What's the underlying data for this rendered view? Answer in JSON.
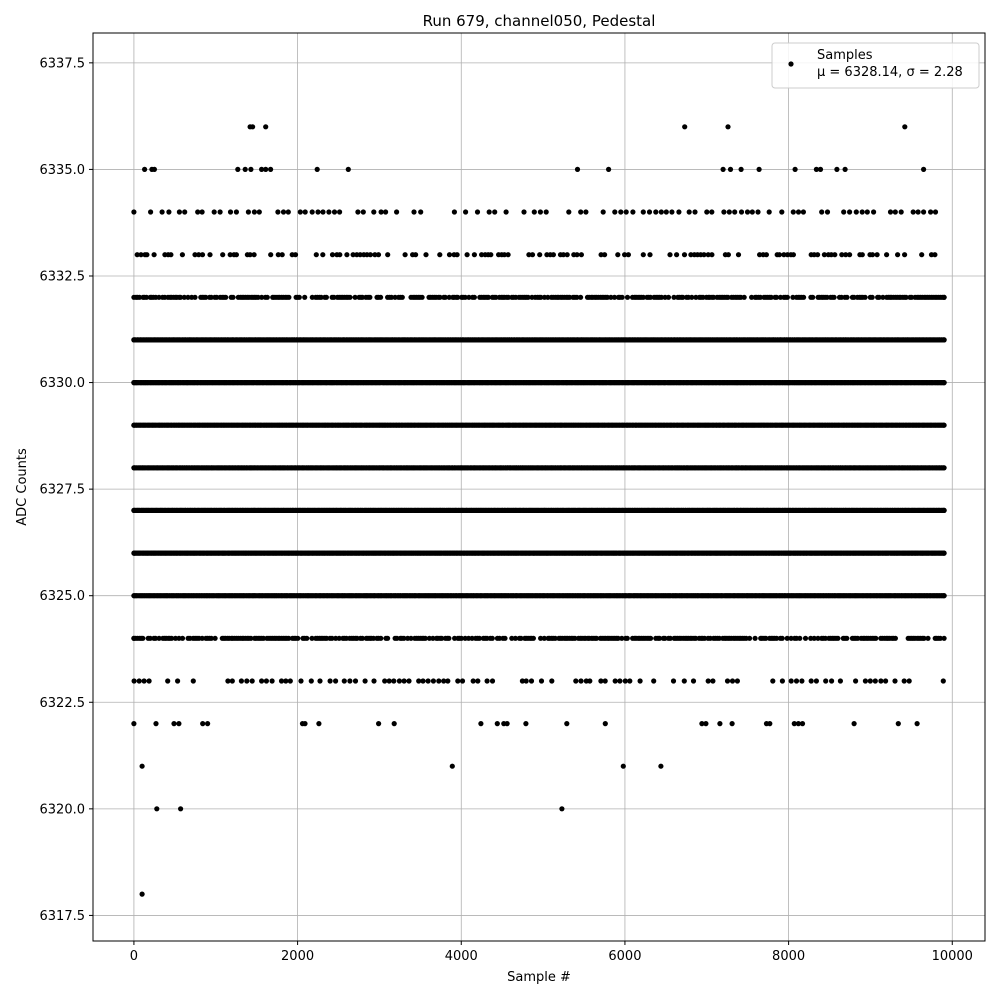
{
  "chart_data": {
    "type": "scatter",
    "title": "Run 679, channel050, Pedestal",
    "xlabel": "Sample #",
    "ylabel": "ADC Counts",
    "xlim": [
      -500,
      10400
    ],
    "ylim": [
      6316.9,
      6338.2
    ],
    "xticks": [
      0,
      2000,
      4000,
      6000,
      8000,
      10000
    ],
    "xtick_labels": [
      "0",
      "2000",
      "4000",
      "6000",
      "8000",
      "10000"
    ],
    "yticks": [
      6317.5,
      6320.0,
      6322.5,
      6325.0,
      6327.5,
      6330.0,
      6332.5,
      6335.0,
      6337.5
    ],
    "ytick_labels": [
      "6317.5",
      "6320.0",
      "6322.5",
      "6325.0",
      "6327.5",
      "6330.0",
      "6332.5",
      "6335.0",
      "6337.5"
    ],
    "grid": true,
    "legend_position": "top-right",
    "marker_color": "#000000",
    "series": [
      {
        "name": "Samples",
        "label_line2": "μ = 6328.14, σ = 2.28",
        "n_samples": 10000,
        "mean": 6328.14,
        "std": 2.28,
        "dense_levels": [
          6324,
          6325,
          6326,
          6327,
          6328,
          6329,
          6330,
          6331,
          6332
        ],
        "sparse_levels": [
          6323,
          6333,
          6334
        ],
        "points": [
          [
            0,
            6322
          ],
          [
            100,
            6321
          ],
          [
            100,
            6318
          ],
          [
            280,
            6320
          ],
          [
            570,
            6320
          ],
          [
            5230,
            6320
          ],
          [
            3890,
            6321
          ],
          [
            5980,
            6321
          ],
          [
            6440,
            6321
          ],
          [
            270,
            6322
          ],
          [
            490,
            6322
          ],
          [
            550,
            6322
          ],
          [
            840,
            6322
          ],
          [
            900,
            6322
          ],
          [
            2060,
            6322
          ],
          [
            2090,
            6322
          ],
          [
            2260,
            6322
          ],
          [
            2990,
            6322
          ],
          [
            3180,
            6322
          ],
          [
            4240,
            6322
          ],
          [
            4440,
            6322
          ],
          [
            4520,
            6322
          ],
          [
            4560,
            6322
          ],
          [
            4790,
            6322
          ],
          [
            5290,
            6322
          ],
          [
            5760,
            6322
          ],
          [
            6940,
            6322
          ],
          [
            6990,
            6322
          ],
          [
            7160,
            6322
          ],
          [
            7310,
            6322
          ],
          [
            7730,
            6322
          ],
          [
            7770,
            6322
          ],
          [
            8070,
            6322
          ],
          [
            8120,
            6322
          ],
          [
            8170,
            6322
          ],
          [
            8800,
            6322
          ],
          [
            9340,
            6322
          ],
          [
            9570,
            6322
          ],
          [
            1270,
            6335
          ],
          [
            1360,
            6335
          ],
          [
            1430,
            6335
          ],
          [
            1560,
            6335
          ],
          [
            1610,
            6335
          ],
          [
            1670,
            6335
          ],
          [
            2240,
            6335
          ],
          [
            2620,
            6335
          ],
          [
            5420,
            6335
          ],
          [
            5800,
            6335
          ],
          [
            7200,
            6335
          ],
          [
            7290,
            6335
          ],
          [
            7420,
            6335
          ],
          [
            7640,
            6335
          ],
          [
            8080,
            6335
          ],
          [
            8340,
            6335
          ],
          [
            8390,
            6335
          ],
          [
            8590,
            6335
          ],
          [
            8690,
            6335
          ],
          [
            9650,
            6335
          ],
          [
            130,
            6335
          ],
          [
            220,
            6335
          ],
          [
            250,
            6335
          ],
          [
            1420,
            6336
          ],
          [
            1450,
            6336
          ],
          [
            1610,
            6336
          ],
          [
            6730,
            6336
          ],
          [
            7260,
            6336
          ],
          [
            9420,
            6336
          ]
        ]
      }
    ]
  }
}
